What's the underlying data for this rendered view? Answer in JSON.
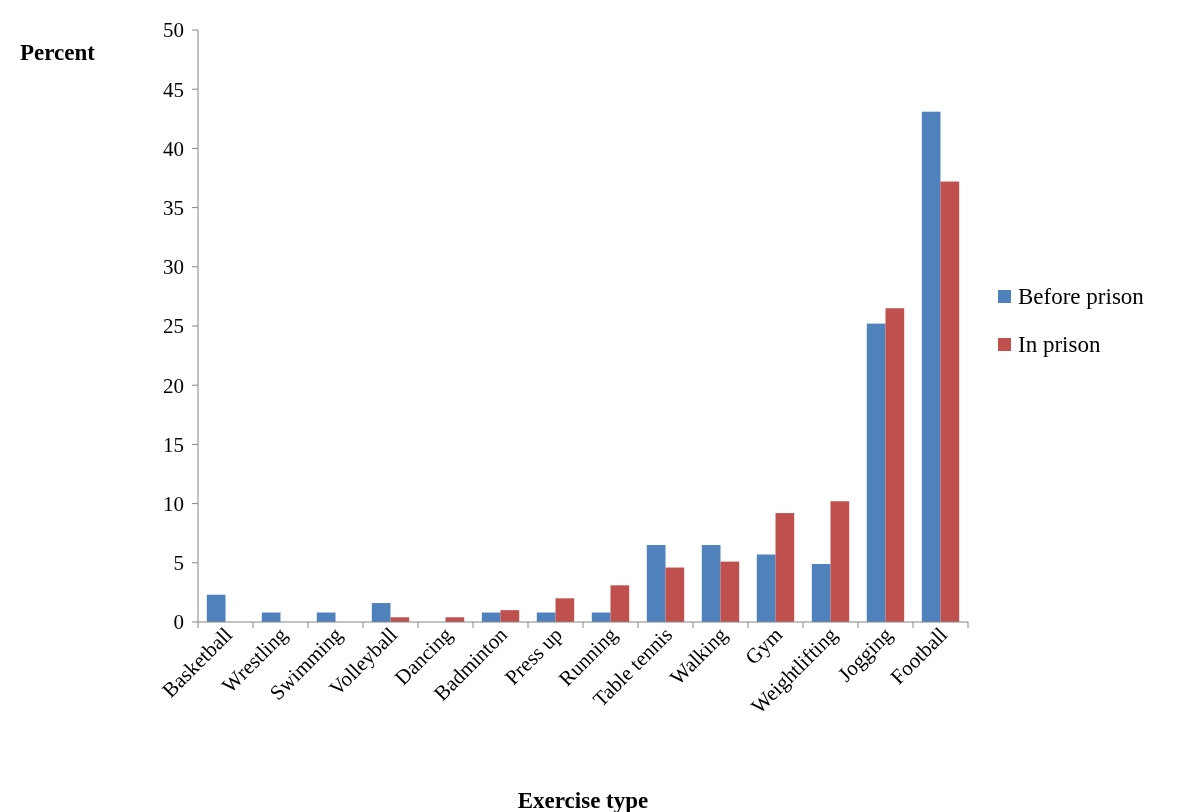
{
  "chart_data": {
    "type": "bar",
    "xlabel": "Exercise type",
    "ylabel": "Percent",
    "categories": [
      "Basketball",
      "Wrestling",
      "Swimming",
      "Volleyball",
      "Dancing",
      "Badminton",
      "Press up",
      "Running",
      "Table tennis",
      "Walking",
      "Gym",
      "Weightlifting",
      "Jogging",
      "Football"
    ],
    "series": [
      {
        "name": "Before prison",
        "color": "#4f81bd",
        "values": [
          2.3,
          0.8,
          0.8,
          1.6,
          0,
          0.8,
          0.8,
          0.8,
          6.5,
          6.5,
          5.7,
          4.9,
          25.2,
          43.1
        ]
      },
      {
        "name": "In prison",
        "color": "#c0504d",
        "values": [
          0,
          0,
          0,
          0.4,
          0.4,
          1.0,
          2.0,
          3.1,
          4.6,
          5.1,
          9.2,
          10.2,
          26.5,
          37.2
        ]
      }
    ],
    "ylim": [
      0,
      50
    ],
    "yticks": [
      0,
      5,
      10,
      15,
      20,
      25,
      30,
      35,
      40,
      45,
      50
    ],
    "grid": false,
    "legend": "right"
  }
}
